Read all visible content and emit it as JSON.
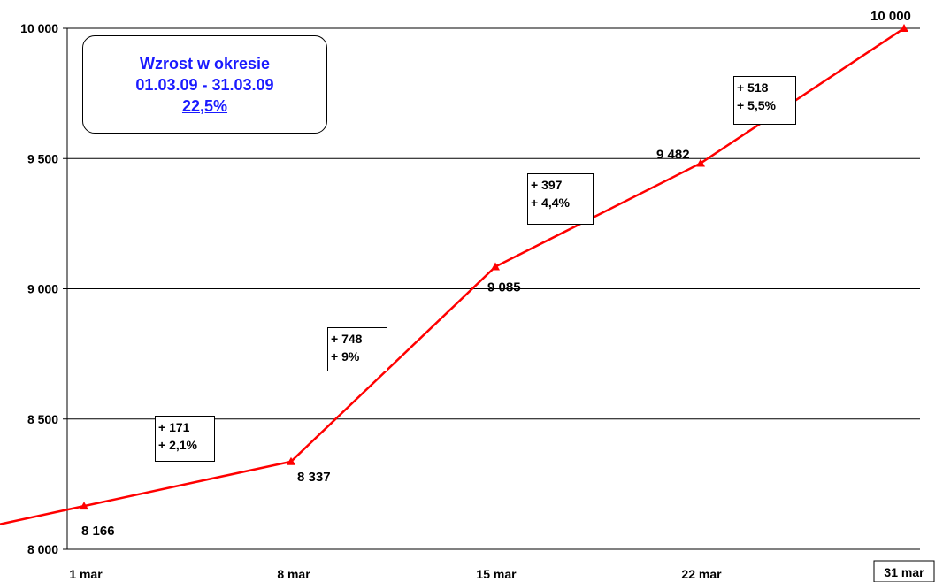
{
  "summary": {
    "title": "Wzrost w okresie",
    "period": "01.03.09 - 31.03.09",
    "growth": "22,5%",
    "text_color": "#1a1aff"
  },
  "changes": [
    {
      "abs": "+ 171",
      "pct": "+ 2,1%"
    },
    {
      "abs": "+ 748",
      "pct": "+ 9%"
    },
    {
      "abs": "+ 397",
      "pct": "+ 4,4%"
    },
    {
      "abs": "+ 518",
      "pct": "+ 5,5%"
    }
  ],
  "chart_data": {
    "type": "line",
    "categories": [
      "1 mar",
      "8 mar",
      "15 mar",
      "22 mar",
      "31 mar"
    ],
    "x_tick_labels": [
      "1 mar",
      "8 mar",
      "15 mar",
      "22 mar",
      "31 mar"
    ],
    "series": [
      {
        "values": [
          8166,
          8337,
          9085,
          9482,
          10000
        ],
        "point_labels": [
          "8 166",
          "8 337",
          "9 085",
          "9 482",
          "10 000"
        ],
        "color": "#ff0000",
        "marker": "triangle"
      }
    ],
    "ylim": [
      8000,
      10000
    ],
    "y_ticks": [
      8000,
      8500,
      9000,
      9500,
      10000
    ],
    "y_tick_labels": [
      "8 000",
      "8 500",
      "9 000",
      "9 500",
      "10 000"
    ],
    "grid": "horizontal",
    "legend": "none"
  }
}
